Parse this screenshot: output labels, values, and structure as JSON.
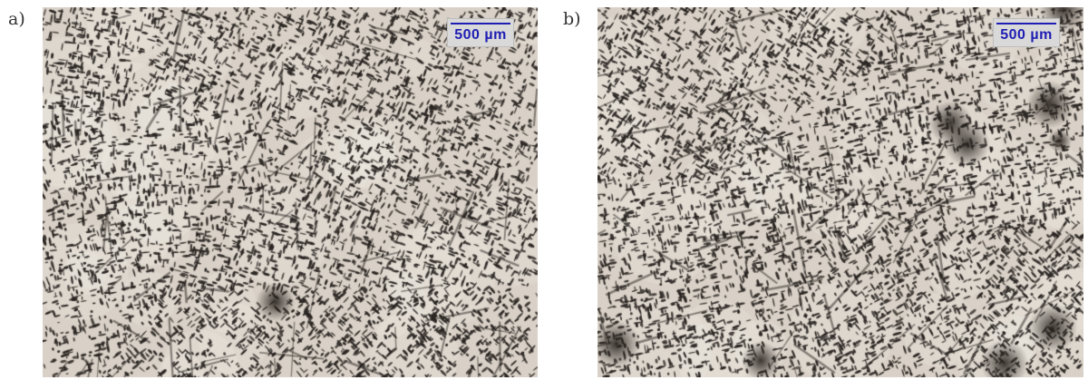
{
  "panels": [
    {
      "label": "a)",
      "scale_text": "500  µm",
      "seed": 11
    },
    {
      "label": "b)",
      "scale_text": "500 µm",
      "seed": 29
    }
  ],
  "colors": {
    "matrix": "#d9d1c7",
    "phase": "#2a2522",
    "scale": "#1e1eb4"
  }
}
